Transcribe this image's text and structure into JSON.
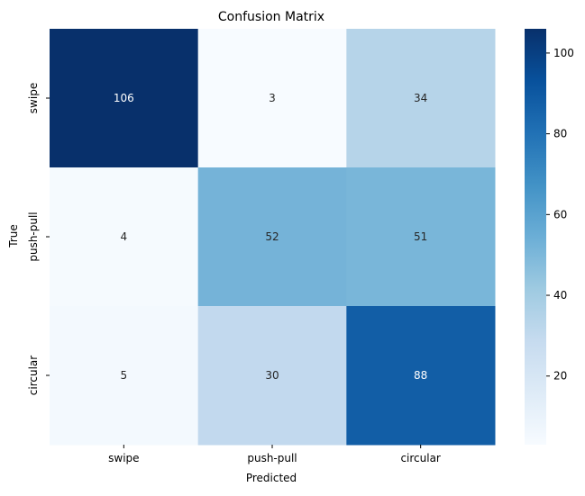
{
  "chart_data": {
    "type": "heatmap",
    "title": "Confusion Matrix",
    "xlabel": "Predicted",
    "ylabel": "True",
    "x_categories": [
      "swipe",
      "push-pull",
      "circular"
    ],
    "y_categories": [
      "swipe",
      "push-pull",
      "circular"
    ],
    "values": [
      [
        106,
        3,
        34
      ],
      [
        4,
        52,
        51
      ],
      [
        5,
        30,
        88
      ]
    ],
    "colormap": "Blues",
    "color_range": [
      3,
      106
    ],
    "colorbar_ticks": [
      20,
      40,
      60,
      80,
      100
    ],
    "annotation_colors": {
      "dark_cell": "#ffffff",
      "light_cell": "#262626"
    },
    "grid": false
  }
}
